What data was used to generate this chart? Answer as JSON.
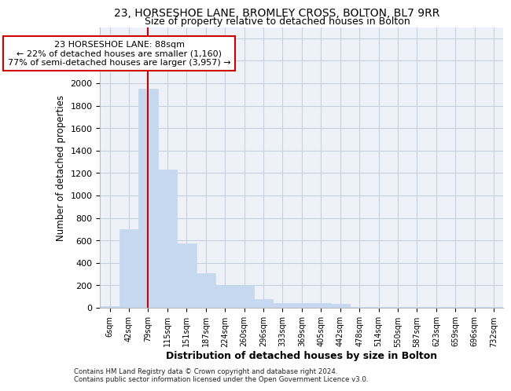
{
  "title1": "23, HORSESHOE LANE, BROMLEY CROSS, BOLTON, BL7 9RR",
  "title2": "Size of property relative to detached houses in Bolton",
  "xlabel": "Distribution of detached houses by size in Bolton",
  "ylabel": "Number of detached properties",
  "bar_color": "#c5d8f0",
  "bar_edge_color": "#c5d8f0",
  "bin_labels": [
    "6sqm",
    "42sqm",
    "79sqm",
    "115sqm",
    "151sqm",
    "187sqm",
    "224sqm",
    "260sqm",
    "296sqm",
    "333sqm",
    "369sqm",
    "405sqm",
    "442sqm",
    "478sqm",
    "514sqm",
    "550sqm",
    "587sqm",
    "623sqm",
    "659sqm",
    "696sqm",
    "732sqm"
  ],
  "bar_heights": [
    15,
    700,
    1950,
    1230,
    575,
    305,
    200,
    200,
    80,
    45,
    40,
    40,
    32,
    5,
    5,
    5,
    5,
    5,
    5,
    5,
    5
  ],
  "ylim": [
    0,
    2500
  ],
  "yticks": [
    0,
    200,
    400,
    600,
    800,
    1000,
    1200,
    1400,
    1600,
    1800,
    2000,
    2200,
    2400
  ],
  "property_bin_index": 2,
  "annotation_line1": "23 HORSESHOE LANE: 88sqm",
  "annotation_line2": "← 22% of detached houses are smaller (1,160)",
  "annotation_line3": "77% of semi-detached houses are larger (3,957) →",
  "vline_color": "#cc0000",
  "annotation_box_facecolor": "#ffffff",
  "annotation_box_edgecolor": "#cc0000",
  "background_color": "#eef2f8",
  "grid_color": "#c8d0e0",
  "footer1": "Contains HM Land Registry data © Crown copyright and database right 2024.",
  "footer2": "Contains public sector information licensed under the Open Government Licence v3.0."
}
